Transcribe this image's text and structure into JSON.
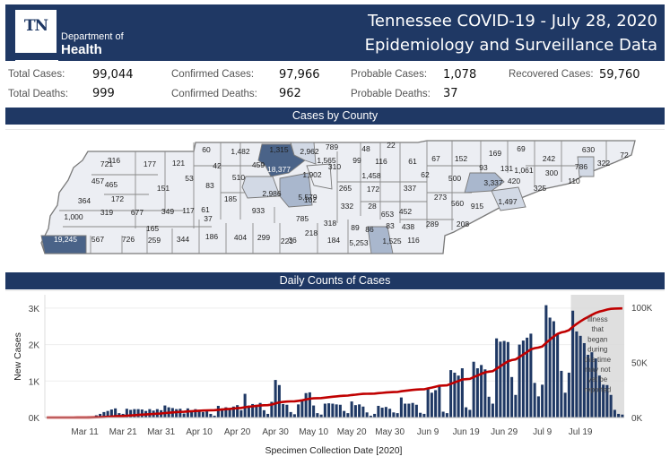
{
  "header": {
    "logo_mark": "TN",
    "logo_line1": "Department of",
    "logo_line2": "Health",
    "title_line1": "Tennessee COVID-19 - July 28, 2020",
    "title_line2": "Epidemiology and Surveillance Data",
    "color": "#1f3864"
  },
  "stats": {
    "total_cases": {
      "label": "Total Cases:",
      "value": "99,044"
    },
    "total_deaths": {
      "label": "Total Deaths:",
      "value": "999"
    },
    "confirmed_cases": {
      "label": "Confirmed Cases:",
      "value": "97,966"
    },
    "confirmed_deaths": {
      "label": "Confirmed Deaths:",
      "value": "962"
    },
    "probable_cases": {
      "label": "Probable Cases:",
      "value": "1,078"
    },
    "probable_deaths": {
      "label": "Probable Deaths:",
      "value": "37"
    },
    "recovered_cases": {
      "label": "Recovered Cases:",
      "value": "59,760"
    }
  },
  "map": {
    "title": "Cases by County",
    "colors": {
      "low": "#eceef3",
      "mid": "#d2d9e5",
      "high": "#a9b7cd",
      "top": "#4a6388",
      "border": "#7a7a7a"
    },
    "county_labels": [
      "721",
      "316",
      "177",
      "121",
      "60",
      "1,482",
      "1,315",
      "2,962",
      "789",
      "48",
      "22",
      "457",
      "465",
      "151",
      "53",
      "42",
      "510",
      "459",
      "18,377",
      "1,565",
      "310",
      "99",
      "116",
      "61",
      "67",
      "152",
      "169",
      "69",
      "630",
      "72",
      "364",
      "172",
      "83",
      "1,902",
      "1,458",
      "62",
      "500",
      "93",
      "131",
      "1,061",
      "242",
      "786",
      "322",
      "1,000",
      "319",
      "677",
      "349",
      "117",
      "61",
      "185",
      "2,986",
      "5,579",
      "265",
      "172",
      "337",
      "273",
      "3,337",
      "420",
      "300",
      "110",
      "325",
      "37",
      "933",
      "102",
      "332",
      "28",
      "653",
      "452",
      "560",
      "915",
      "1,497",
      "19,245",
      "567",
      "726",
      "165",
      "259",
      "344",
      "186",
      "404",
      "299",
      "221",
      "785",
      "318",
      "89",
      "86",
      "83",
      "438",
      "289",
      "208",
      "36",
      "218",
      "184",
      "5,253",
      "1,525",
      "116"
    ]
  },
  "daily": {
    "title": "Daily Counts of Cases",
    "annotation": [
      "Illness",
      "that",
      "began",
      "during",
      "this time",
      "may not",
      "yet be",
      "reported"
    ]
  },
  "chart_data": {
    "type": "bar",
    "title": "Daily Counts of Cases",
    "xlabel": "Specimen Collection Date [2020]",
    "ylabel": "New Cases",
    "ylim": [
      0,
      3300
    ],
    "y2lim": [
      0,
      100000
    ],
    "yticks": [
      "0K",
      "1K",
      "2K",
      "3K"
    ],
    "y2ticks": [
      "0K",
      "50K",
      "100K"
    ],
    "xticks": [
      "Mar 11",
      "Mar 21",
      "Mar 31",
      "Apr 10",
      "Apr 20",
      "Apr 30",
      "May 10",
      "May 20",
      "May 30",
      "Jun 9",
      "Jun 19",
      "Jun 29",
      "Jul 9",
      "Jul 19"
    ],
    "start_date": "Mar 1",
    "shaded_region_start": "Jul 14",
    "bar_color": "#1f3864",
    "line_color": "#c00000",
    "series": [
      {
        "name": "New Cases",
        "kind": "bar",
        "values": [
          2,
          2,
          3,
          3,
          4,
          5,
          6,
          8,
          10,
          15,
          20,
          30,
          35,
          60,
          100,
          150,
          180,
          220,
          250,
          120,
          100,
          240,
          210,
          230,
          230,
          220,
          180,
          230,
          190,
          230,
          200,
          330,
          280,
          260,
          230,
          240,
          110,
          250,
          200,
          230,
          200,
          150,
          170,
          100,
          50,
          320,
          250,
          280,
          230,
          300,
          340,
          200,
          650,
          330,
          370,
          350,
          400,
          200,
          100,
          430,
          1030,
          890,
          370,
          350,
          150,
          90,
          360,
          450,
          670,
          690,
          330,
          120,
          80,
          380,
          390,
          380,
          360,
          350,
          180,
          120,
          440,
          340,
          360,
          300,
          140,
          50,
          100,
          320,
          270,
          290,
          240,
          140,
          120,
          550,
          380,
          380,
          400,
          350,
          130,
          100,
          780,
          680,
          750,
          860,
          160,
          120,
          1300,
          1230,
          1150,
          1350,
          280,
          210,
          1530,
          1350,
          1440,
          1320,
          570,
          380,
          2170,
          2080,
          2100,
          2070,
          1110,
          620,
          2000,
          2110,
          2190,
          2300,
          950,
          580,
          900,
          3080,
          2740,
          2640,
          2290,
          1280,
          680,
          1230,
          2930,
          2360,
          2240,
          2040,
          1720,
          1790,
          1620,
          1150,
          900,
          890,
          620,
          210,
          100,
          80
        ]
      },
      {
        "name": "Cumulative Cases",
        "kind": "line",
        "axis": "right"
      }
    ]
  }
}
